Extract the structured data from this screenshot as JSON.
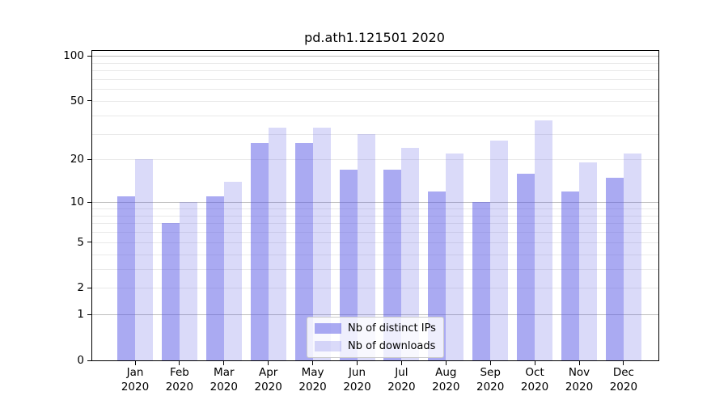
{
  "chart_data": {
    "type": "bar",
    "title": "pd.ath1.121501 2020",
    "categories": [
      "Jan",
      "Feb",
      "Mar",
      "Apr",
      "May",
      "Jun",
      "Jul",
      "Aug",
      "Sep",
      "Oct",
      "Nov",
      "Dec"
    ],
    "category_year": "2020",
    "series": [
      {
        "name": "Nb of distinct IPs",
        "color": "rgba(85,85,229,0.5)",
        "values": [
          11,
          7,
          11,
          26,
          26,
          17,
          17,
          12,
          10,
          16,
          12,
          15
        ]
      },
      {
        "name": "Nb of downloads",
        "color": "rgba(85,85,229,0.22)",
        "values": [
          20,
          10,
          14,
          33,
          33,
          30,
          24,
          22,
          27,
          37,
          19,
          22
        ]
      }
    ],
    "yscale": "log1p",
    "ylim": [
      0,
      108
    ],
    "yticks": [
      100,
      50,
      20,
      10,
      5,
      2,
      1,
      0
    ],
    "major_gridlines": [
      1,
      10,
      100
    ],
    "minor_gridlines": [
      2,
      3,
      4,
      5,
      6,
      7,
      8,
      9,
      20,
      30,
      40,
      50,
      60,
      70,
      80,
      90
    ],
    "grid": "on",
    "legend_position": "lower center",
    "colors": {
      "bar_distinct_ips_on_white": "#aaaaf2",
      "bar_downloads_on_white": "#d8d8f9",
      "major_grid": "#bdbdbd",
      "minor_grid": "#e9e9e9",
      "spine": "#000000"
    }
  }
}
